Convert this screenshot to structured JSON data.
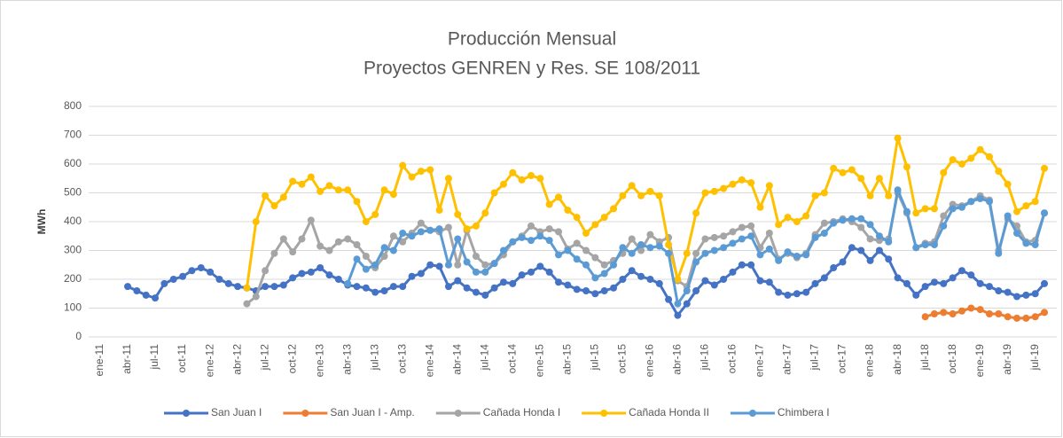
{
  "chart_data": {
    "type": "line",
    "title": "Producción Mensual",
    "subtitle": "Proyectos GENREN y Res. SE 108/2011",
    "y_label": "MWh",
    "categories": [
      "ene-11",
      null,
      null,
      "abr-11",
      null,
      null,
      "jul-11",
      null,
      null,
      "oct-11",
      null,
      null,
      "ene-12",
      null,
      null,
      "abr-12",
      null,
      null,
      "jul-12",
      null,
      null,
      "oct-12",
      null,
      null,
      "ene-13",
      null,
      null,
      "abr-13",
      null,
      null,
      "jul-13",
      null,
      null,
      "oct-13",
      null,
      null,
      "ene-14",
      null,
      null,
      "abr-14",
      null,
      null,
      "jul-14",
      null,
      null,
      "oct-14",
      null,
      null,
      "ene-15",
      null,
      null,
      "abr-15",
      null,
      null,
      "jul-15",
      null,
      null,
      "oct-15",
      null,
      null,
      "ene-16",
      null,
      null,
      "abr-16",
      null,
      null,
      "jul-16",
      null,
      null,
      "oct-16",
      null,
      null,
      "ene-17",
      null,
      null,
      "abr-17",
      null,
      null,
      "jul-17",
      null,
      null,
      "oct-17",
      null,
      null,
      "ene-18",
      null,
      null,
      "abr-18",
      null,
      null,
      "jul-18",
      null,
      null,
      "oct-18",
      null,
      null,
      "ene-19",
      null,
      null,
      "abr-19",
      null,
      null,
      "jul-19",
      null
    ],
    "series": [
      {
        "name": "San Juan I",
        "color": "#4472c4",
        "values": [
          null,
          null,
          null,
          175,
          160,
          145,
          135,
          185,
          200,
          210,
          230,
          240,
          225,
          200,
          185,
          175,
          170,
          160,
          175,
          175,
          180,
          205,
          220,
          225,
          240,
          215,
          200,
          180,
          175,
          170,
          155,
          160,
          175,
          175,
          210,
          220,
          250,
          245,
          175,
          195,
          170,
          155,
          145,
          170,
          190,
          185,
          215,
          225,
          245,
          225,
          190,
          180,
          165,
          160,
          150,
          160,
          170,
          200,
          230,
          210,
          200,
          185,
          130,
          75,
          115,
          160,
          195,
          180,
          200,
          225,
          250,
          250,
          195,
          190,
          155,
          145,
          150,
          155,
          185,
          205,
          240,
          260,
          310,
          300,
          265,
          300,
          270,
          205,
          185,
          145,
          175,
          190,
          185,
          205,
          230,
          215,
          185,
          175,
          160,
          155,
          140,
          145,
          150,
          185
        ]
      },
      {
        "name": "San Juan I - Amp.",
        "color": "#ed7d31",
        "values": [
          null,
          null,
          null,
          null,
          null,
          null,
          null,
          null,
          null,
          null,
          null,
          null,
          null,
          null,
          null,
          null,
          null,
          null,
          null,
          null,
          null,
          null,
          null,
          null,
          null,
          null,
          null,
          null,
          null,
          null,
          null,
          null,
          null,
          null,
          null,
          null,
          null,
          null,
          null,
          null,
          null,
          null,
          null,
          null,
          null,
          null,
          null,
          null,
          null,
          null,
          null,
          null,
          null,
          null,
          null,
          null,
          null,
          null,
          null,
          null,
          null,
          null,
          null,
          null,
          null,
          null,
          null,
          null,
          null,
          null,
          null,
          null,
          null,
          null,
          null,
          null,
          null,
          null,
          null,
          null,
          null,
          null,
          null,
          null,
          null,
          null,
          null,
          null,
          null,
          null,
          70,
          80,
          85,
          80,
          90,
          100,
          95,
          80,
          80,
          70,
          65,
          65,
          70,
          85
        ]
      },
      {
        "name": "Cañada Honda I",
        "color": "#a5a5a5",
        "values": [
          null,
          null,
          null,
          null,
          null,
          null,
          null,
          null,
          null,
          null,
          null,
          null,
          null,
          null,
          null,
          null,
          115,
          140,
          230,
          290,
          340,
          295,
          340,
          405,
          315,
          300,
          330,
          340,
          320,
          280,
          240,
          280,
          350,
          330,
          360,
          395,
          370,
          365,
          380,
          250,
          370,
          280,
          250,
          255,
          285,
          330,
          350,
          385,
          365,
          375,
          365,
          305,
          325,
          300,
          275,
          250,
          265,
          290,
          340,
          300,
          355,
          330,
          345,
          195,
          175,
          290,
          340,
          345,
          350,
          365,
          380,
          385,
          310,
          360,
          270,
          290,
          275,
          290,
          355,
          395,
          400,
          410,
          400,
          380,
          340,
          335,
          340,
          500,
          430,
          310,
          325,
          330,
          420,
          460,
          455,
          470,
          490,
          475,
          300,
          410,
          385,
          330,
          335,
          430
        ]
      },
      {
        "name": "Cañada Honda II",
        "color": "#ffc000",
        "values": [
          null,
          null,
          null,
          null,
          null,
          null,
          null,
          null,
          null,
          null,
          null,
          null,
          null,
          null,
          null,
          null,
          170,
          400,
          490,
          455,
          485,
          540,
          530,
          555,
          505,
          525,
          510,
          510,
          470,
          400,
          425,
          510,
          495,
          595,
          555,
          575,
          580,
          440,
          550,
          425,
          375,
          385,
          430,
          500,
          530,
          570,
          545,
          560,
          550,
          460,
          485,
          440,
          415,
          360,
          390,
          415,
          445,
          490,
          525,
          490,
          505,
          490,
          320,
          200,
          290,
          430,
          500,
          505,
          515,
          530,
          545,
          535,
          450,
          525,
          390,
          415,
          400,
          420,
          490,
          500,
          585,
          570,
          580,
          550,
          490,
          550,
          490,
          690,
          590,
          430,
          445,
          445,
          570,
          615,
          600,
          620,
          650,
          625,
          575,
          530,
          435,
          455,
          470,
          585
        ]
      },
      {
        "name": "Chimbera I",
        "color": "#5b9bd5",
        "values": [
          null,
          null,
          null,
          null,
          null,
          null,
          null,
          null,
          null,
          null,
          null,
          null,
          null,
          null,
          null,
          null,
          null,
          null,
          null,
          null,
          null,
          null,
          null,
          null,
          null,
          null,
          null,
          185,
          270,
          235,
          250,
          310,
          300,
          360,
          350,
          365,
          370,
          375,
          250,
          340,
          260,
          225,
          225,
          255,
          300,
          330,
          345,
          335,
          350,
          335,
          285,
          300,
          270,
          250,
          205,
          220,
          250,
          310,
          290,
          320,
          310,
          315,
          290,
          115,
          160,
          260,
          290,
          300,
          310,
          325,
          340,
          350,
          285,
          305,
          265,
          295,
          280,
          285,
          345,
          360,
          395,
          405,
          410,
          410,
          390,
          350,
          330,
          510,
          435,
          310,
          320,
          320,
          385,
          445,
          450,
          470,
          480,
          470,
          290,
          420,
          360,
          325,
          320,
          430
        ]
      }
    ],
    "ylim": [
      0,
      800
    ],
    "yticks": [
      0,
      100,
      200,
      300,
      400,
      500,
      600,
      700,
      800
    ],
    "grid": true,
    "legend": "bottom"
  }
}
